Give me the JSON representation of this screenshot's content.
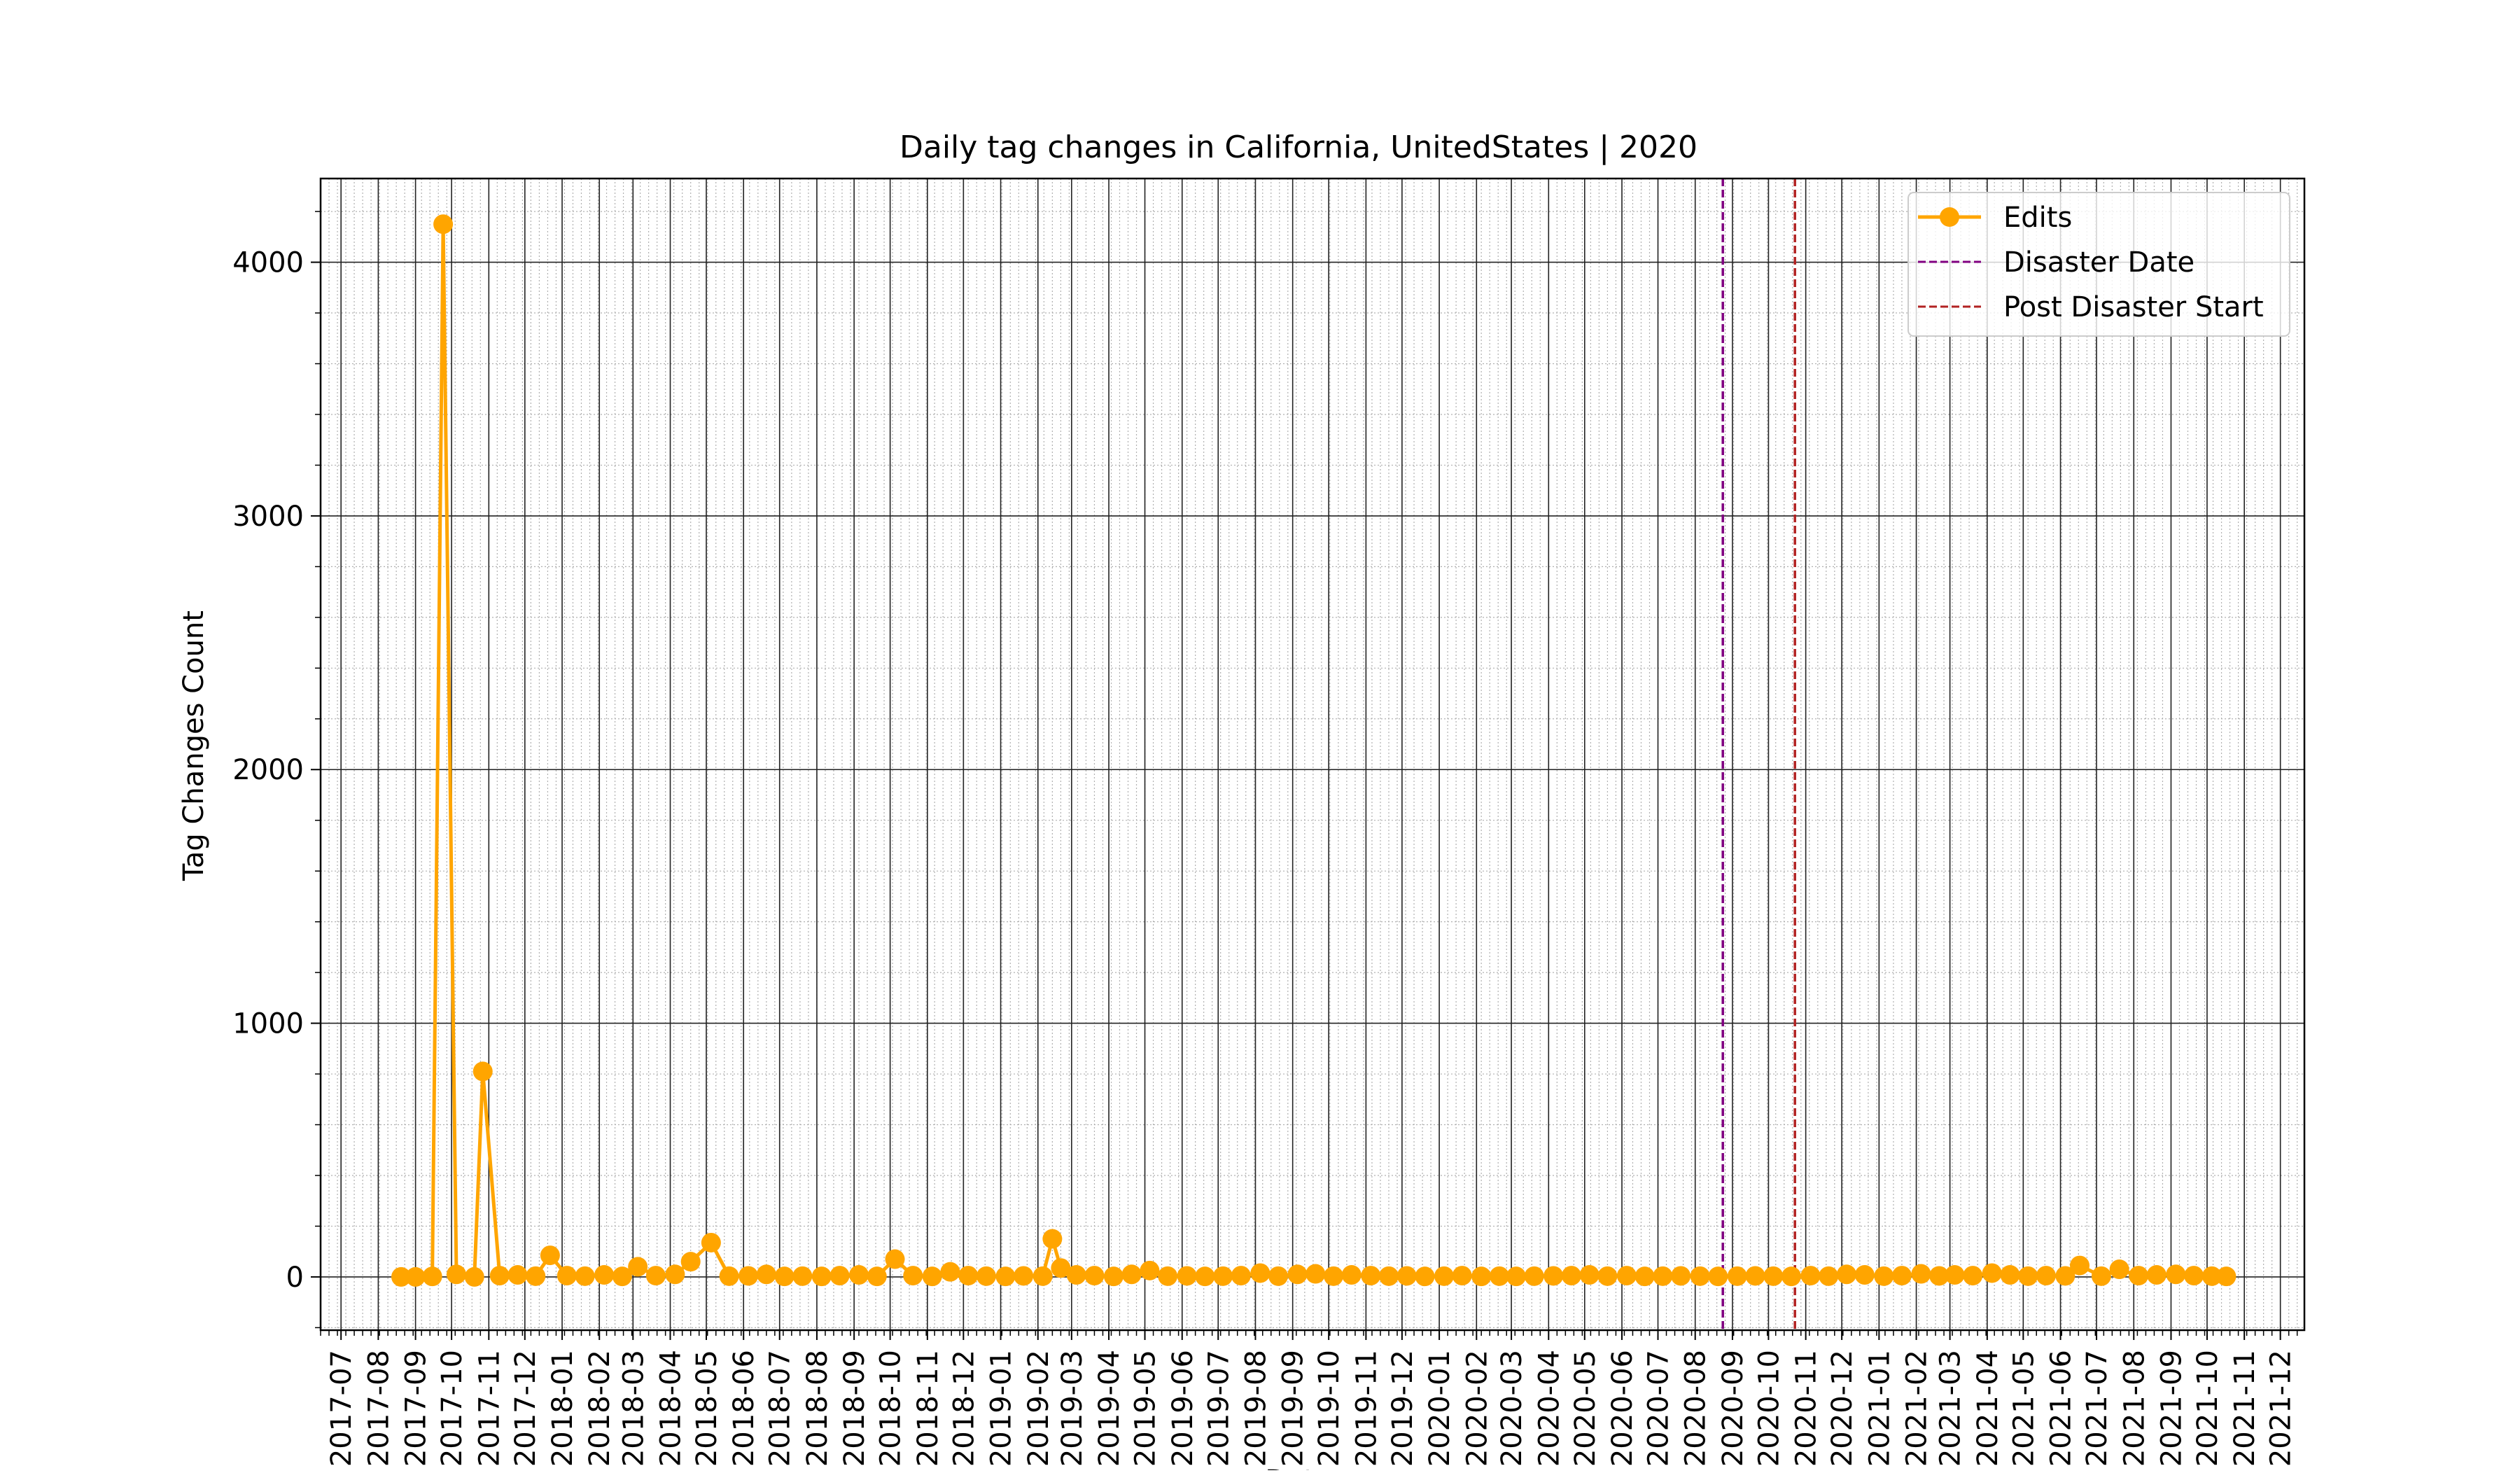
{
  "chart_data": {
    "type": "line",
    "title": "Daily tag changes in California, UnitedStates | 2020",
    "xlabel": "Date",
    "ylabel": "Tag Changes Count",
    "xlim": [
      "2017-06-14",
      "2021-12-21"
    ],
    "ylim": [
      -210,
      4330
    ],
    "y_ticks": [
      0,
      1000,
      2000,
      3000,
      4000
    ],
    "x_ticks": [
      "2017-07",
      "2017-08",
      "2017-09",
      "2017-10",
      "2017-11",
      "2017-12",
      "2018-01",
      "2018-02",
      "2018-03",
      "2018-04",
      "2018-05",
      "2018-06",
      "2018-07",
      "2018-08",
      "2018-09",
      "2018-10",
      "2018-11",
      "2018-12",
      "2019-01",
      "2019-02",
      "2019-03",
      "2019-04",
      "2019-05",
      "2019-06",
      "2019-07",
      "2019-08",
      "2019-09",
      "2019-10",
      "2019-11",
      "2019-12",
      "2020-01",
      "2020-02",
      "2020-03",
      "2020-04",
      "2020-05",
      "2020-06",
      "2020-07",
      "2020-08",
      "2020-09",
      "2020-10",
      "2020-11",
      "2020-12",
      "2021-01",
      "2021-02",
      "2021-03",
      "2021-04",
      "2021-05",
      "2021-06",
      "2021-07",
      "2021-08",
      "2021-09",
      "2021-10",
      "2021-11",
      "2021-12"
    ],
    "grid": true,
    "minor_grid": true,
    "legend_position": "top-right",
    "legend": [
      {
        "label": "Edits",
        "style": "line-marker",
        "color": "#FFA500"
      },
      {
        "label": "Disaster Date",
        "style": "dashed",
        "color": "#800080"
      },
      {
        "label": "Post Disaster Start",
        "style": "dashed",
        "color": "#B22222"
      }
    ],
    "series": [
      {
        "name": "Edits",
        "color": "#FFA500",
        "x": [
          "2017-08-20",
          "2017-09-01",
          "2017-09-15",
          "2017-09-24",
          "2017-10-05",
          "2017-10-20",
          "2017-10-27",
          "2017-11-10",
          "2017-11-25",
          "2017-12-10",
          "2017-12-22",
          "2018-01-05",
          "2018-01-20",
          "2018-02-05",
          "2018-02-20",
          "2018-03-05",
          "2018-03-20",
          "2018-04-05",
          "2018-04-18",
          "2018-05-05",
          "2018-05-20",
          "2018-06-05",
          "2018-06-20",
          "2018-07-05",
          "2018-07-20",
          "2018-08-05",
          "2018-08-20",
          "2018-09-05",
          "2018-09-20",
          "2018-10-05",
          "2018-10-20",
          "2018-11-05",
          "2018-11-20",
          "2018-12-05",
          "2018-12-20",
          "2019-01-05",
          "2019-01-20",
          "2019-02-05",
          "2019-02-13",
          "2019-02-20",
          "2019-03-05",
          "2019-03-20",
          "2019-04-05",
          "2019-04-20",
          "2019-05-05",
          "2019-05-20",
          "2019-06-05",
          "2019-06-20",
          "2019-07-05",
          "2019-07-20",
          "2019-08-05",
          "2019-08-20",
          "2019-09-05",
          "2019-09-20",
          "2019-10-05",
          "2019-10-20",
          "2019-11-05",
          "2019-11-20",
          "2019-12-05",
          "2019-12-20",
          "2020-01-05",
          "2020-01-20",
          "2020-02-05",
          "2020-02-20",
          "2020-03-05",
          "2020-03-20",
          "2020-04-05",
          "2020-04-20",
          "2020-05-05",
          "2020-05-20",
          "2020-06-05",
          "2020-06-20",
          "2020-07-05",
          "2020-07-20",
          "2020-08-05",
          "2020-08-20",
          "2020-09-05",
          "2020-09-20",
          "2020-10-05",
          "2020-10-20",
          "2020-11-05",
          "2020-11-20",
          "2020-12-05",
          "2020-12-20",
          "2021-01-05",
          "2021-01-20",
          "2021-02-05",
          "2021-02-20",
          "2021-03-05",
          "2021-03-20",
          "2021-04-05",
          "2021-04-20",
          "2021-05-05",
          "2021-05-20",
          "2021-06-05",
          "2021-06-17",
          "2021-07-05",
          "2021-07-20",
          "2021-08-05",
          "2021-08-20",
          "2021-09-05",
          "2021-09-20",
          "2021-10-05",
          "2021-10-17"
        ],
        "y": [
          0,
          0,
          2,
          4150,
          10,
          0,
          810,
          5,
          8,
          3,
          85,
          5,
          3,
          8,
          2,
          40,
          5,
          10,
          60,
          135,
          3,
          4,
          10,
          2,
          3,
          2,
          5,
          8,
          2,
          70,
          5,
          2,
          20,
          5,
          3,
          2,
          4,
          3,
          150,
          35,
          8,
          5,
          2,
          10,
          25,
          3,
          4,
          2,
          3,
          5,
          15,
          3,
          10,
          12,
          3,
          8,
          5,
          3,
          4,
          2,
          3,
          5,
          2,
          3,
          2,
          3,
          4,
          5,
          8,
          3,
          5,
          2,
          3,
          4,
          3,
          2,
          3,
          4,
          3,
          2,
          5,
          3,
          10,
          8,
          3,
          5,
          12,
          4,
          8,
          5,
          15,
          8,
          3,
          5,
          4,
          45,
          3,
          30,
          5,
          8,
          10,
          5,
          3,
          2
        ]
      }
    ],
    "vlines": [
      {
        "name": "Disaster Date",
        "x": "2020-08-24",
        "color": "#800080"
      },
      {
        "name": "Post Disaster Start",
        "x": "2020-10-23",
        "color": "#B22222"
      }
    ]
  }
}
